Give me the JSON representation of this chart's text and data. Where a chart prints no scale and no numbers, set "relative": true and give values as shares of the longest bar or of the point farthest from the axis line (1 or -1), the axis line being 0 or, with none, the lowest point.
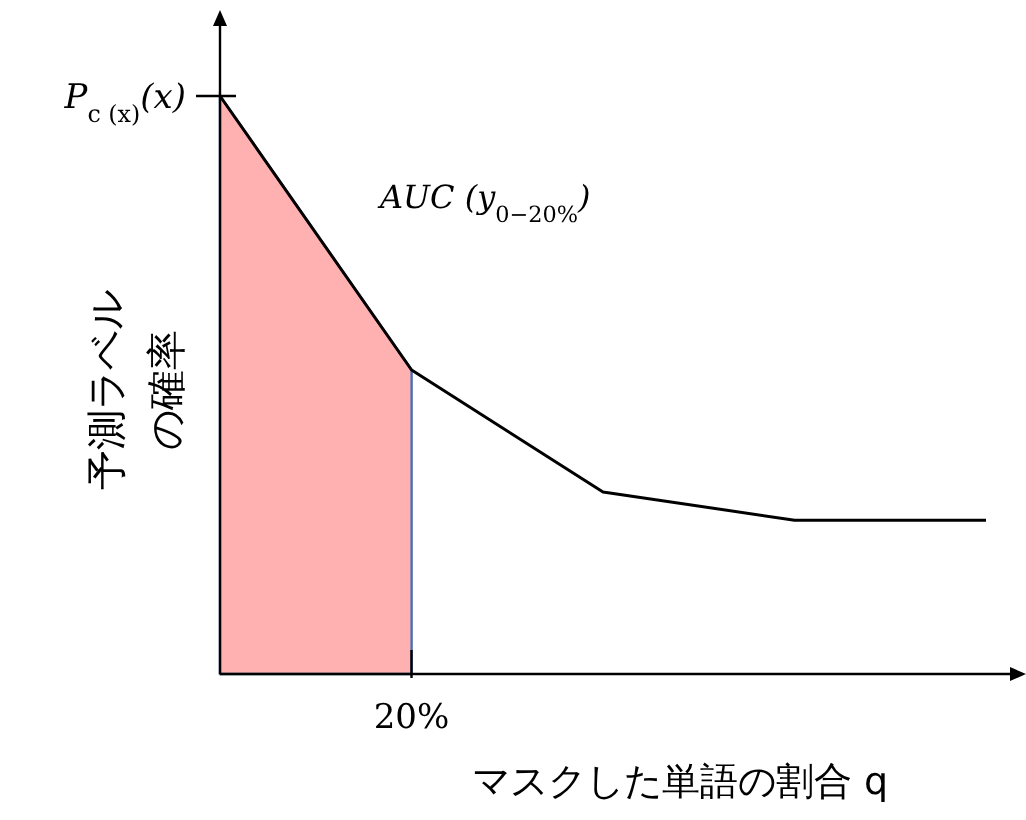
{
  "chart_data": {
    "type": "line",
    "relative": true,
    "xlabel": "マスクした単語の割合 q",
    "ylabel": "予測ラベルの確率",
    "categories": [
      null,
      null,
      null,
      null,
      null
    ],
    "series": [
      {
        "type": "area",
        "color": "#ffb0b0",
        "values": [
          1,
          0.526,
          null,
          null,
          null
        ]
      },
      {
        "type": "line",
        "color": "#000000",
        "values": [
          1,
          0.526,
          0.315,
          0.266,
          0.266
        ]
      }
    ],
    "annotations": [
      "P$_{c (x)}$(x)",
      "AUC (y$_{0−20%}$)",
      "20%"
    ],
    "legend": false,
    "marker": "none",
    "line_style": "solid"
  }
}
